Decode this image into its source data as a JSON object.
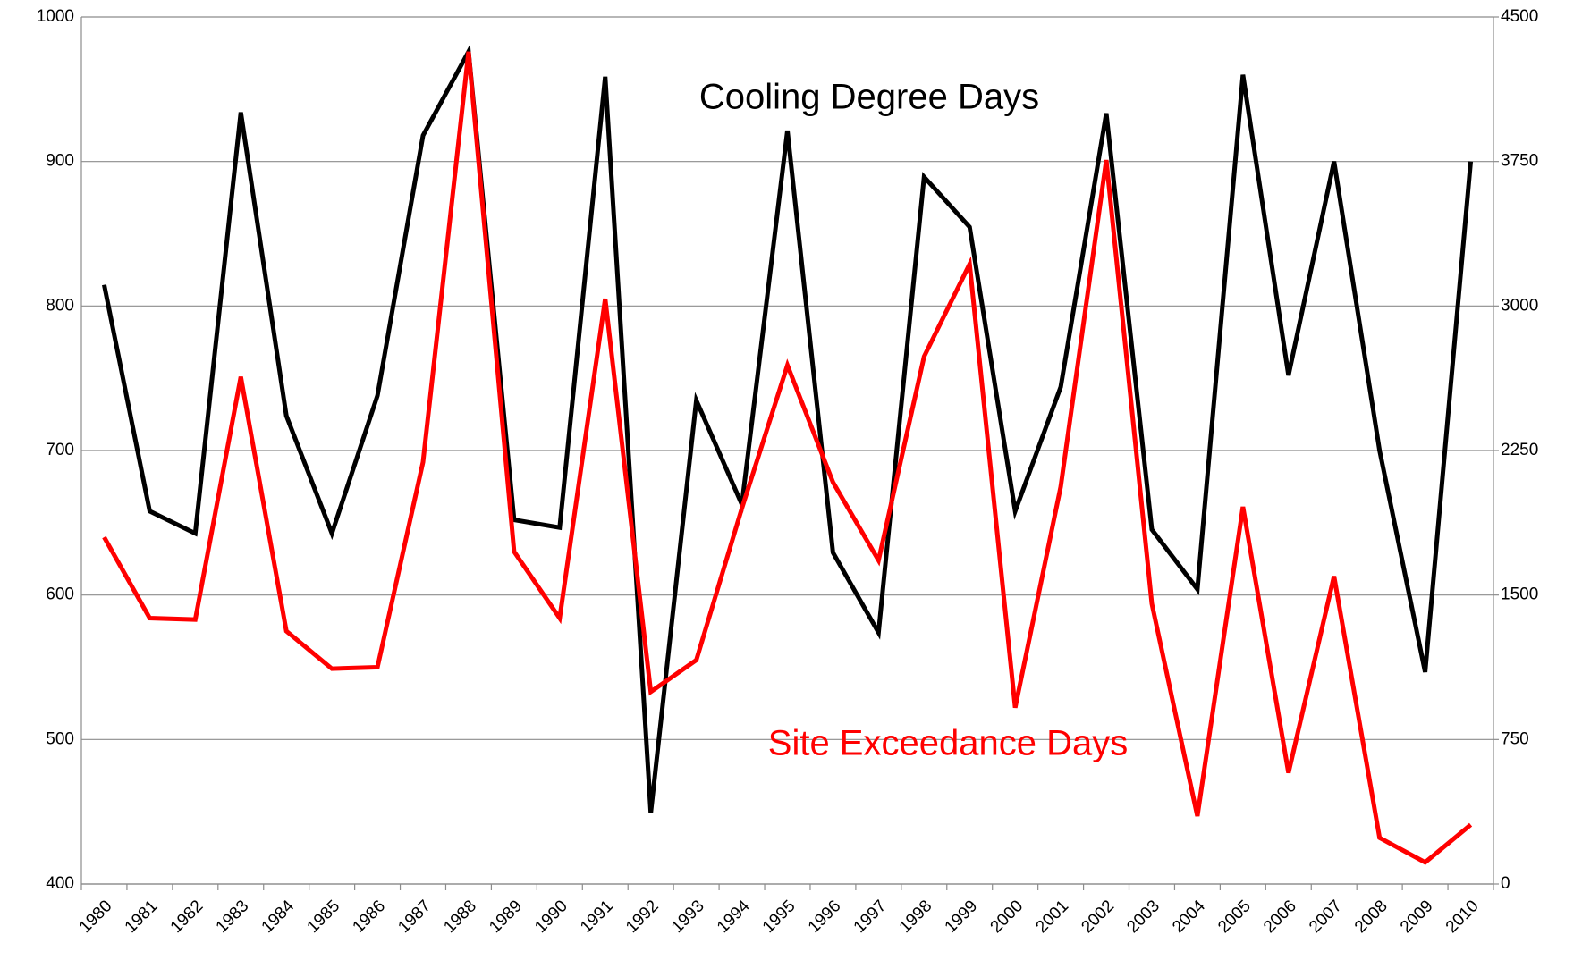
{
  "chart_data": {
    "type": "line",
    "categories": [
      "1980",
      "1981",
      "1982",
      "1983",
      "1984",
      "1985",
      "1986",
      "1987",
      "1988",
      "1989",
      "1990",
      "1991",
      "1992",
      "1993",
      "1994",
      "1995",
      "1996",
      "1997",
      "1998",
      "1999",
      "2000",
      "2001",
      "2002",
      "2003",
      "2004",
      "2005",
      "2006",
      "2007",
      "2008",
      "2009",
      "2010"
    ],
    "series": [
      {
        "name": "Cooling Degree Days",
        "color": "#000000",
        "axis": "y2",
        "values": [
          3110,
          1935,
          1820,
          4005,
          2430,
          1820,
          2535,
          3885,
          4320,
          1890,
          1850,
          4190,
          370,
          2510,
          1970,
          3910,
          1720,
          1305,
          3670,
          3410,
          1935,
          2580,
          4000,
          1840,
          1530,
          4200,
          2640,
          3750,
          2250,
          1100,
          3750
        ]
      },
      {
        "name": "Site Exceedance Days",
        "color": "#ff0000",
        "values": [
          640,
          584,
          583,
          751,
          575,
          549,
          550,
          692,
          976,
          630,
          584,
          805,
          533,
          555,
          660,
          759,
          678,
          624,
          765,
          829,
          522,
          675,
          901,
          594,
          447,
          661,
          477,
          613,
          432,
          415,
          441
        ]
      }
    ],
    "ylim": [
      400,
      1000
    ],
    "yticks": [
      400,
      500,
      600,
      700,
      800,
      900,
      1000
    ],
    "y2lim": [
      0,
      4500
    ],
    "y2ticks": [
      0,
      750,
      1500,
      2250,
      3000,
      3750,
      4500
    ],
    "grid": true
  }
}
